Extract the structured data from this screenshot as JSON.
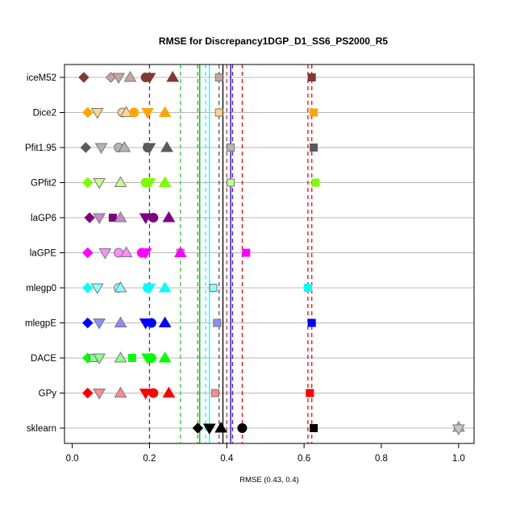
{
  "chart_data": {
    "type": "scatter",
    "title": "RMSE for Discrepancy1DGP_D1_SS6_PS2000_R5",
    "xlabel": "RMSE (0.43, 0.4)",
    "ylabel": "",
    "xlim": [
      -0.02,
      1.04
    ],
    "x_ticks": [
      0.0,
      0.2,
      0.4,
      0.6,
      0.8,
      1.0
    ],
    "x_tick_labels": [
      "0.0",
      "0.2",
      "0.4",
      "0.6",
      "0.8",
      "1.0"
    ],
    "grid": "horizontal lines at each category",
    "categories": [
      "iceM52",
      "Dice2",
      "Pfit1.95",
      "GPfit2",
      "laGP6",
      "laGPE",
      "mlegp0",
      "mlegpE",
      "DACE",
      "GPy",
      "sklearn"
    ],
    "series": [
      {
        "category": "iceM52",
        "color": "#7f3b2e",
        "points": [
          {
            "shape": "diamond",
            "x": 0.03
          },
          {
            "shape": "diamond",
            "x": 0.1,
            "faded": true
          },
          {
            "shape": "tri-down",
            "x": 0.12,
            "faded": true
          },
          {
            "shape": "tri-up",
            "x": 0.15,
            "faded": true
          },
          {
            "shape": "circle",
            "x": 0.19
          },
          {
            "shape": "tri-down",
            "x": 0.2
          },
          {
            "shape": "tri-up",
            "x": 0.26
          },
          {
            "shape": "square",
            "x": 0.38,
            "faded": true
          },
          {
            "shape": "square",
            "x": 0.62
          }
        ]
      },
      {
        "category": "Dice2",
        "color": "#ffa500",
        "points": [
          {
            "shape": "diamond",
            "x": 0.04
          },
          {
            "shape": "tri-down",
            "x": 0.065,
            "faded": true
          },
          {
            "shape": "circle",
            "x": 0.13,
            "faded": true
          },
          {
            "shape": "tri-up",
            "x": 0.14,
            "faded": true
          },
          {
            "shape": "circle",
            "x": 0.16
          },
          {
            "shape": "tri-down",
            "x": 0.195
          },
          {
            "shape": "tri-up",
            "x": 0.24
          },
          {
            "shape": "square",
            "x": 0.38,
            "faded": true
          },
          {
            "shape": "square",
            "x": 0.625
          }
        ]
      },
      {
        "category": "Pfit1.95",
        "color": "#5a5a5a",
        "points": [
          {
            "shape": "diamond",
            "x": 0.035
          },
          {
            "shape": "tri-down",
            "x": 0.075,
            "faded": true
          },
          {
            "shape": "circle",
            "x": 0.12,
            "faded": true
          },
          {
            "shape": "tri-up",
            "x": 0.135,
            "faded": true
          },
          {
            "shape": "circle",
            "x": 0.195
          },
          {
            "shape": "tri-down",
            "x": 0.2
          },
          {
            "shape": "tri-up",
            "x": 0.245
          },
          {
            "shape": "square",
            "x": 0.41,
            "faded": true
          },
          {
            "shape": "square",
            "x": 0.625
          }
        ]
      },
      {
        "category": "GPfit2",
        "color": "#7cfc00",
        "points": [
          {
            "shape": "diamond",
            "x": 0.04
          },
          {
            "shape": "tri-down",
            "x": 0.07,
            "faded": true
          },
          {
            "shape": "tri-up",
            "x": 0.125,
            "faded": true
          },
          {
            "shape": "circle",
            "x": 0.19
          },
          {
            "shape": "tri-down",
            "x": 0.2
          },
          {
            "shape": "tri-up",
            "x": 0.24
          },
          {
            "shape": "square",
            "x": 0.41,
            "faded": true
          },
          {
            "shape": "square",
            "x": 0.63
          }
        ]
      },
      {
        "category": "laGP6",
        "color": "#800080",
        "points": [
          {
            "shape": "diamond",
            "x": 0.045
          },
          {
            "shape": "tri-down",
            "x": 0.07,
            "faded": true
          },
          {
            "shape": "square",
            "x": 0.105
          },
          {
            "shape": "tri-up",
            "x": 0.125,
            "faded": true
          },
          {
            "shape": "tri-down",
            "x": 0.19
          },
          {
            "shape": "circle",
            "x": 0.21
          },
          {
            "shape": "tri-up",
            "x": 0.25
          }
        ]
      },
      {
        "category": "laGPE",
        "color": "#ff00ff",
        "points": [
          {
            "shape": "diamond",
            "x": 0.04
          },
          {
            "shape": "tri-down",
            "x": 0.085,
            "faded": true
          },
          {
            "shape": "circle",
            "x": 0.12,
            "faded": true
          },
          {
            "shape": "tri-up",
            "x": 0.14,
            "faded": true
          },
          {
            "shape": "circle",
            "x": 0.18
          },
          {
            "shape": "tri-down",
            "x": 0.19
          },
          {
            "shape": "square",
            "x": 0.28,
            "faded": true
          },
          {
            "shape": "tri-up",
            "x": 0.28
          },
          {
            "shape": "square",
            "x": 0.45
          }
        ]
      },
      {
        "category": "mlegp0",
        "color": "#00ffff",
        "points": [
          {
            "shape": "diamond",
            "x": 0.04
          },
          {
            "shape": "tri-down",
            "x": 0.065,
            "faded": true
          },
          {
            "shape": "circle",
            "x": 0.12,
            "faded": true
          },
          {
            "shape": "tri-up",
            "x": 0.125,
            "faded": true
          },
          {
            "shape": "circle",
            "x": 0.195
          },
          {
            "shape": "tri-down",
            "x": 0.2
          },
          {
            "shape": "tri-up",
            "x": 0.24
          },
          {
            "shape": "square",
            "x": 0.365,
            "faded": true
          },
          {
            "shape": "square",
            "x": 0.61
          }
        ]
      },
      {
        "category": "mlegpE",
        "color": "#0000ff",
        "points": [
          {
            "shape": "diamond",
            "x": 0.04
          },
          {
            "shape": "tri-down",
            "x": 0.07,
            "faded": true
          },
          {
            "shape": "tri-up",
            "x": 0.125,
            "faded": true
          },
          {
            "shape": "tri-down",
            "x": 0.19
          },
          {
            "shape": "circle",
            "x": 0.205
          },
          {
            "shape": "tri-up",
            "x": 0.24
          },
          {
            "shape": "square",
            "x": 0.375,
            "faded": true
          },
          {
            "shape": "square",
            "x": 0.62
          }
        ]
      },
      {
        "category": "DACE",
        "color": "#00ff00",
        "points": [
          {
            "shape": "diamond",
            "x": 0.04
          },
          {
            "shape": "square",
            "x": 0.055,
            "faded": true
          },
          {
            "shape": "tri-down",
            "x": 0.07,
            "faded": true
          },
          {
            "shape": "tri-up",
            "x": 0.125,
            "faded": true
          },
          {
            "shape": "square",
            "x": 0.155
          },
          {
            "shape": "tri-down",
            "x": 0.195
          },
          {
            "shape": "circle",
            "x": 0.205
          },
          {
            "shape": "tri-up",
            "x": 0.24
          }
        ]
      },
      {
        "category": "GPy",
        "color": "#ff0000",
        "points": [
          {
            "shape": "diamond",
            "x": 0.04
          },
          {
            "shape": "tri-down",
            "x": 0.07,
            "faded": true
          },
          {
            "shape": "tri-up",
            "x": 0.125,
            "faded": true
          },
          {
            "shape": "tri-down",
            "x": 0.19
          },
          {
            "shape": "circle",
            "x": 0.21
          },
          {
            "shape": "tri-up",
            "x": 0.25
          },
          {
            "shape": "square",
            "x": 0.37,
            "faded": true
          },
          {
            "shape": "square",
            "x": 0.615
          }
        ]
      },
      {
        "category": "sklearn",
        "color": "#000000",
        "points": [
          {
            "shape": "diamond",
            "x": 0.325
          },
          {
            "shape": "tri-down",
            "x": 0.355
          },
          {
            "shape": "tri-up",
            "x": 0.385
          },
          {
            "shape": "circle",
            "x": 0.44
          },
          {
            "shape": "square",
            "x": 0.625
          },
          {
            "shape": "star",
            "x": 1.0,
            "faded": true
          }
        ]
      }
    ],
    "vlines": [
      {
        "x": 0.2,
        "color": "#3333cc",
        "style": "dashed"
      },
      {
        "x": 0.28,
        "color": "#33cc33",
        "style": "dashed"
      },
      {
        "x": 0.325,
        "color": "#00cc00",
        "style": "dashed"
      },
      {
        "x": 0.33,
        "color": "#00aa00",
        "style": "solid"
      },
      {
        "x": 0.345,
        "color": "#00ffff",
        "style": "dashed"
      },
      {
        "x": 0.355,
        "color": "#00ffff",
        "style": "solid"
      },
      {
        "x": 0.38,
        "color": "#555555",
        "style": "dashed"
      },
      {
        "x": 0.39,
        "color": "#000000",
        "style": "solid"
      },
      {
        "x": 0.4,
        "color": "#9c4a3a",
        "style": "dashed"
      },
      {
        "x": 0.41,
        "color": "#0000ff",
        "style": "solid"
      },
      {
        "x": 0.415,
        "color": "#800080",
        "style": "dashed"
      },
      {
        "x": 0.44,
        "color": "#ff0000",
        "style": "dashed"
      },
      {
        "x": 0.61,
        "color": "#ff0000",
        "style": "dashed"
      },
      {
        "x": 0.62,
        "color": "#ff0000",
        "style": "dashed"
      }
    ]
  }
}
